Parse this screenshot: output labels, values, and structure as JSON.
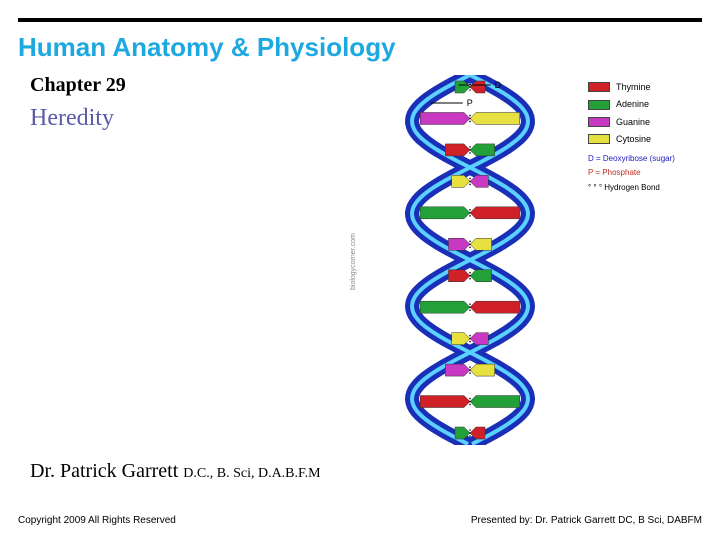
{
  "header": {
    "title": "Human Anatomy & Physiology",
    "chapter": "Chapter 29",
    "subtitle": "Heredity",
    "title_color": "#1da9e0",
    "subtitle_color": "#5a5aa8",
    "bar_color": "#000000"
  },
  "author": {
    "name": "Dr. Patrick Garrett ",
    "credentials": "D.C., B. Sci, D.A.B.F.M"
  },
  "footer": {
    "left": "Copyright 2009 All Rights Reserved",
    "right": "Presented by: Dr. Patrick Garrett DC, B Sci, DABFM"
  },
  "diagram": {
    "type": "dna-double-helix",
    "backbone_color": "#1a2fb8",
    "backbone_highlight": "#5bd1ff",
    "phosphate_color": "#46c8f0",
    "deoxyribose_color": "#2a2aa0",
    "bases": {
      "thymine": "#d02028",
      "adenine": "#24a038",
      "guanine": "#c838c0",
      "cytosine": "#e6e040"
    },
    "label_D": "D",
    "label_P": "P",
    "rung_pairs": [
      [
        "adenine",
        "thymine"
      ],
      [
        "guanine",
        "cytosine"
      ],
      [
        "thymine",
        "adenine"
      ],
      [
        "cytosine",
        "guanine"
      ],
      [
        "adenine",
        "thymine"
      ],
      [
        "guanine",
        "cytosine"
      ],
      [
        "thymine",
        "adenine"
      ],
      [
        "adenine",
        "thymine"
      ],
      [
        "cytosine",
        "guanine"
      ],
      [
        "guanine",
        "cytosine"
      ],
      [
        "thymine",
        "adenine"
      ],
      [
        "adenine",
        "thymine"
      ]
    ]
  },
  "legend": {
    "items": [
      {
        "label": "Thymine",
        "color": "#d02028"
      },
      {
        "label": "Adenine",
        "color": "#24a038"
      },
      {
        "label": "Guanine",
        "color": "#c838c0"
      },
      {
        "label": "Cytosine",
        "color": "#e6e040"
      }
    ],
    "note_deoxy": "D = Deoxyribose (sugar)",
    "note_phos": "P = Phosphate",
    "note_hbond": "° ° °  Hydrogen Bond"
  },
  "watermark": "biologycorner.com"
}
